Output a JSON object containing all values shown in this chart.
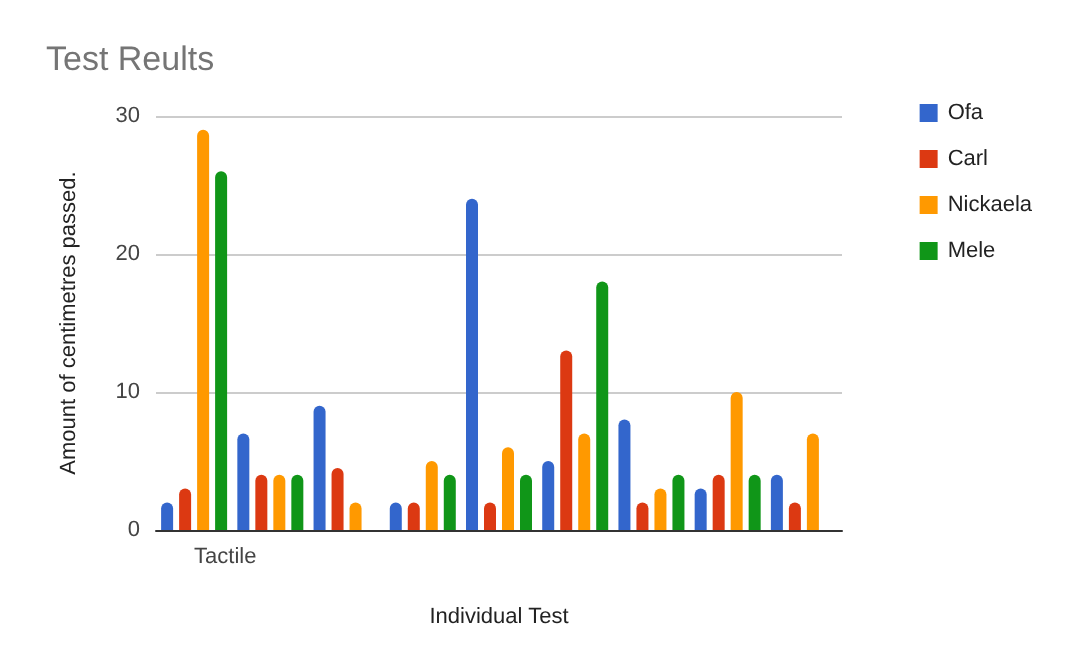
{
  "chart_data": {
    "type": "bar",
    "title": "Test Reults",
    "xlabel": "Individual Test",
    "ylabel": "Amount of centimetres passed.",
    "categories": [
      "Tactile",
      null,
      null,
      null,
      null,
      null,
      null,
      null,
      null
    ],
    "series": [
      {
        "name": "Ofa",
        "color": "#3366cc",
        "values": [
          2,
          7,
          9,
          2,
          24,
          5,
          8,
          3,
          4
        ]
      },
      {
        "name": "Carl",
        "color": "#dc3912",
        "values": [
          3,
          4,
          4.5,
          2,
          2,
          13,
          2,
          4,
          2
        ]
      },
      {
        "name": "Nickaela",
        "color": "#ff9900",
        "values": [
          29,
          4,
          2,
          5,
          6,
          7,
          3,
          10,
          7
        ]
      },
      {
        "name": "Mele",
        "color": "#109618",
        "values": [
          26,
          4,
          null,
          4,
          4,
          18,
          4,
          4,
          null
        ]
      }
    ],
    "ylim": [
      0,
      30
    ],
    "yticks": [
      0,
      10,
      20,
      30
    ],
    "grid": "y",
    "legend": "right"
  }
}
